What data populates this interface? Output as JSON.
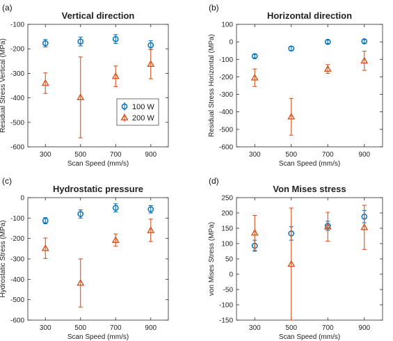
{
  "colors": {
    "s100": "#0072BD",
    "s200": "#D95319",
    "axis": "#262626"
  },
  "chart_data": [
    {
      "type": "scatter",
      "panel_label": "(a)",
      "title": "Vertical direction",
      "xlabel": "Scan Speed (mm/s)",
      "ylabel": "Residual Stress Vertical (MPa)",
      "xlim": [
        200,
        1000
      ],
      "ylim": [
        -600,
        -100
      ],
      "xticks": [
        300,
        500,
        700,
        900
      ],
      "yticks": [
        -600,
        -500,
        -400,
        -300,
        -200,
        -100
      ],
      "legend": {
        "position": "inside-right",
        "entries": [
          "100 W",
          "200 W"
        ]
      },
      "series": [
        {
          "name": "100 W",
          "marker": "circle",
          "x": [
            300,
            500,
            700,
            900
          ],
          "y": [
            -177,
            -170,
            -160,
            -185
          ],
          "err": [
            15,
            18,
            18,
            18
          ]
        },
        {
          "name": "200 W",
          "marker": "triangle",
          "x": [
            300,
            500,
            700,
            900
          ],
          "y": [
            -340,
            -398,
            -312,
            -262
          ],
          "err": [
            42,
            165,
            42,
            60
          ]
        }
      ]
    },
    {
      "type": "scatter",
      "panel_label": "(b)",
      "title": "Horizontal direction",
      "xlabel": "Scan Speed (mm/s)",
      "ylabel": "Residual Stress Horizontal (MPa)",
      "xlim": [
        200,
        1000
      ],
      "ylim": [
        -600,
        100
      ],
      "xticks": [
        300,
        500,
        700,
        900
      ],
      "yticks": [
        -600,
        -500,
        -400,
        -300,
        -200,
        -100,
        0,
        100
      ],
      "series": [
        {
          "name": "100 W",
          "marker": "circle",
          "x": [
            300,
            500,
            700,
            900
          ],
          "y": [
            -82,
            -38,
            0,
            3
          ],
          "err": [
            10,
            12,
            10,
            10
          ]
        },
        {
          "name": "200 W",
          "marker": "triangle",
          "x": [
            300,
            500,
            700,
            900
          ],
          "y": [
            -205,
            -428,
            -155,
            -108
          ],
          "err": [
            50,
            105,
            25,
            55
          ]
        }
      ]
    },
    {
      "type": "scatter",
      "panel_label": "(c)",
      "title": "Hydrostatic pressure",
      "xlabel": "Scan Speed (mm/s)",
      "ylabel": "Hydrostatic Stress (MPa)",
      "xlim": [
        200,
        1000
      ],
      "ylim": [
        -600,
        0
      ],
      "xticks": [
        300,
        500,
        700,
        900
      ],
      "yticks": [
        -600,
        -500,
        -400,
        -300,
        -200,
        -100,
        0
      ],
      "series": [
        {
          "name": "100 W",
          "marker": "circle",
          "x": [
            300,
            500,
            700,
            900
          ],
          "y": [
            -113,
            -80,
            -50,
            -57
          ],
          "err": [
            15,
            20,
            20,
            18
          ]
        },
        {
          "name": "200 W",
          "marker": "triangle",
          "x": [
            300,
            500,
            700,
            900
          ],
          "y": [
            -248,
            -418,
            -208,
            -160
          ],
          "err": [
            50,
            118,
            30,
            55
          ]
        }
      ]
    },
    {
      "type": "scatter",
      "panel_label": "(d)",
      "title": "Von Mises stress",
      "xlabel": "Scan Speed (mm/s)",
      "ylabel": "von Mises Stress (MPa)",
      "xlim": [
        200,
        1000
      ],
      "ylim": [
        -150,
        250
      ],
      "xticks": [
        300,
        500,
        700,
        900
      ],
      "yticks": [
        -150,
        -100,
        -50,
        0,
        50,
        100,
        150,
        200,
        250
      ],
      "series": [
        {
          "name": "100 W",
          "marker": "circle",
          "x": [
            300,
            500,
            700,
            900
          ],
          "y": [
            93,
            133,
            158,
            188
          ],
          "err": [
            18,
            22,
            15,
            20
          ]
        },
        {
          "name": "200 W",
          "marker": "triangle",
          "x": [
            300,
            500,
            700,
            900
          ],
          "y": [
            135,
            33,
            155,
            153
          ],
          "err": [
            57,
            183,
            47,
            72
          ]
        }
      ]
    }
  ]
}
